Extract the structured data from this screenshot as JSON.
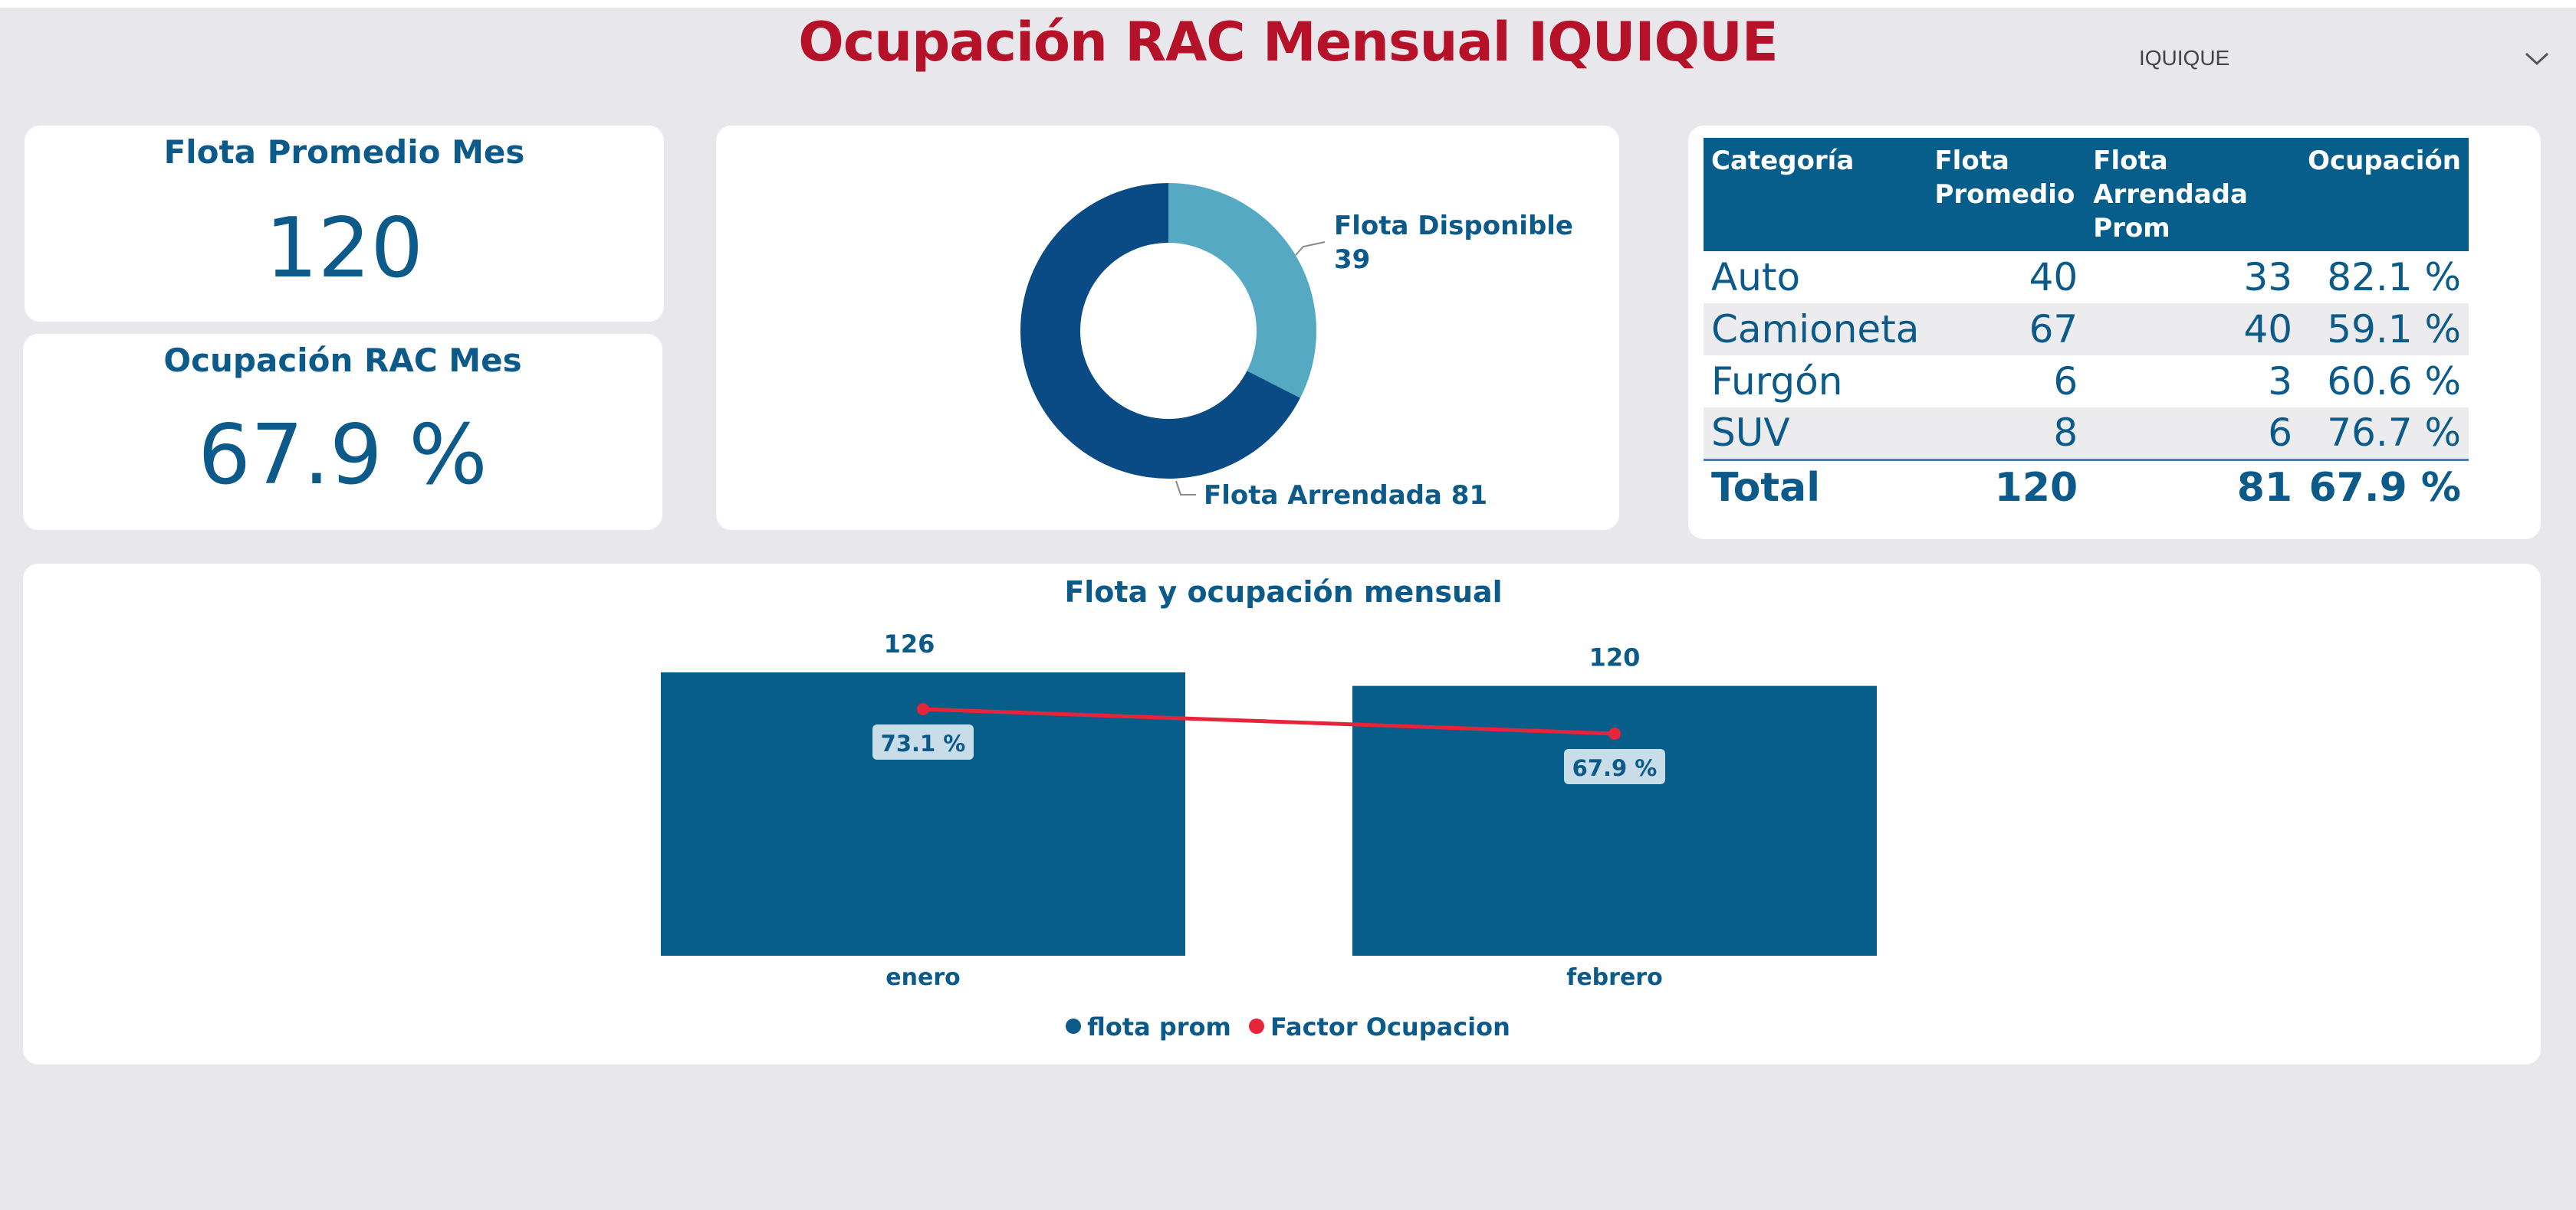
{
  "header": {
    "title": "Ocupación RAC Mensual IQUIQUE"
  },
  "slicer": {
    "value": "IQUIQUE",
    "icon": "chevron-down-icon"
  },
  "kpi_flota": {
    "title": "Flota Promedio Mes",
    "value": "120"
  },
  "kpi_ocupacion": {
    "title": "Ocupación RAC Mes",
    "value": "67.9 %"
  },
  "colors": {
    "title": "#b51229",
    "primary": "#0b5a8a",
    "bar": "#075e8a",
    "donut_arrendada": "#0a4a85",
    "donut_disponible": "#55a9c2",
    "line": "#e8243a"
  },
  "table": {
    "headers": [
      [
        "Categoría"
      ],
      [
        "Flota",
        "Promedio"
      ],
      [
        "Flota Arrendada",
        "Prom"
      ],
      [
        "Ocupación"
      ]
    ],
    "rows": [
      [
        "Auto",
        "40",
        "33",
        "82.1 %"
      ],
      [
        "Camioneta",
        "67",
        "40",
        "59.1 %"
      ],
      [
        "Furgón",
        "6",
        "3",
        "60.6 %"
      ],
      [
        "SUV",
        "8",
        "6",
        "76.7 %"
      ]
    ],
    "total": [
      "Total",
      "120",
      "81",
      "67.9 %"
    ]
  },
  "chart_data": [
    {
      "type": "pie",
      "donut": true,
      "slices": [
        {
          "label": "Flota Disponible",
          "value": 39,
          "label_text": "39"
        },
        {
          "label": "Flota Arrendada",
          "value": 81,
          "label_text": "81"
        }
      ]
    },
    {
      "type": "bar",
      "title": "Flota y ocupación mensual",
      "categories": [
        "enero",
        "febrero"
      ],
      "series": [
        {
          "name": "flota prom",
          "values": [
            126,
            120
          ],
          "labels": [
            "126",
            "120"
          ]
        },
        {
          "name": "Factor Ocupacion",
          "type": "line",
          "values": [
            73.1,
            67.9
          ],
          "labels": [
            "73.1 %",
            "67.9 %"
          ]
        }
      ]
    }
  ]
}
